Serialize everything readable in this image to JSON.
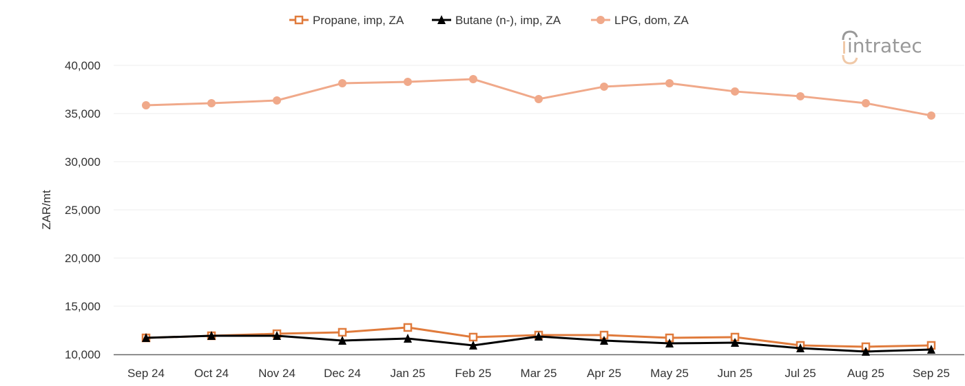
{
  "chart_data": {
    "type": "line",
    "title": "",
    "xlabel": "",
    "ylabel": "ZAR/mt",
    "ylim": [
      10000,
      40000
    ],
    "yticks": [
      10000,
      15000,
      20000,
      25000,
      30000,
      35000,
      40000
    ],
    "ytick_labels": [
      "10,000",
      "15,000",
      "20,000",
      "25,000",
      "30,000",
      "35,000",
      "40,000"
    ],
    "grid": "horizontal",
    "legend_position": "top",
    "categories": [
      "Sep 24",
      "Oct 24",
      "Nov 24",
      "Dec 24",
      "Jan 25",
      "Feb 25",
      "Mar 25",
      "Apr 25",
      "May 25",
      "Jun 25",
      "Jul 25",
      "Aug 25",
      "Sep 25"
    ],
    "series": [
      {
        "name": "Propane, imp, ZA",
        "color": "#e07b3c",
        "marker": "open-square",
        "values": [
          11710,
          11930,
          12140,
          12290,
          12790,
          11790,
          12000,
          12000,
          11710,
          11790,
          10930,
          10790,
          10930
        ]
      },
      {
        "name": "Butane (n-), imp, ZA",
        "color": "#000000",
        "marker": "triangle",
        "values": [
          11710,
          11930,
          11930,
          11430,
          11640,
          10930,
          11860,
          11430,
          11140,
          11210,
          10640,
          10290,
          10500
        ]
      },
      {
        "name": "LPG, dom, ZA",
        "color": "#f0a98a",
        "marker": "circle",
        "values": [
          35860,
          36070,
          36360,
          38140,
          38290,
          38570,
          36500,
          37790,
          38140,
          37290,
          36790,
          36070,
          34790
        ]
      }
    ]
  },
  "logo": {
    "text": "intratec"
  }
}
